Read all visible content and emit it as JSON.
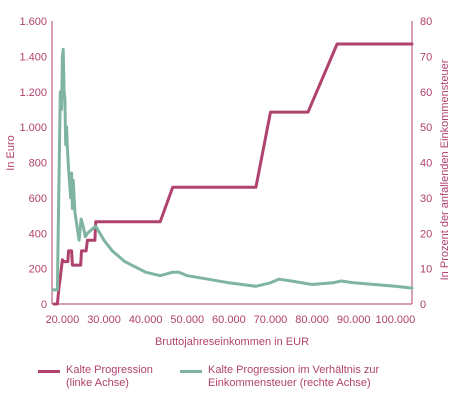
{
  "chart_data": {
    "type": "line",
    "title": "",
    "xlabel": "Bruttojahreseinkommen in EUR",
    "ylabel_left": "In Euro",
    "ylabel_right": "In Prozent der anfallenden Einkommensteuer",
    "x_ticks": [
      20000,
      30000,
      40000,
      50000,
      60000,
      70000,
      80000,
      90000,
      100000
    ],
    "x_tick_labels": [
      "20.000",
      "30.000",
      "40.000",
      "50.000",
      "60.000",
      "70.000",
      "80.000",
      "90.000",
      "100.000"
    ],
    "xlim": [
      17500,
      104000
    ],
    "ylim_left": [
      0,
      1600
    ],
    "y_left_ticks": [
      0,
      200,
      400,
      600,
      800,
      1000,
      1200,
      1400,
      1600
    ],
    "y_left_tick_labels": [
      "0",
      "200",
      "400",
      "600",
      "800",
      "1.000",
      "1.200",
      "1.400",
      "1.600"
    ],
    "ylim_right": [
      0,
      80
    ],
    "y_right_ticks": [
      0,
      10,
      20,
      30,
      40,
      50,
      60,
      70,
      80
    ],
    "y_right_tick_labels": [
      "0",
      "10",
      "20",
      "30",
      "40",
      "50",
      "60",
      "70",
      "80"
    ],
    "grid": false,
    "legend_position": "bottom",
    "series": [
      {
        "name": "Kalte Progression (linke Achse)",
        "legend_lines": [
          "Kalte Progression",
          "(linke Achse)"
        ],
        "axis": "left",
        "color": "#b0426e",
        "x": [
          18000,
          18800,
          19000,
          19200,
          19500,
          20000,
          20300,
          21300,
          21500,
          22200,
          22400,
          22600,
          24400,
          24600,
          25700,
          26000,
          27800,
          28000,
          43500,
          46500,
          47000,
          66500,
          70000,
          71000,
          79000,
          86000,
          87000,
          104000
        ],
        "y": [
          0,
          0,
          50,
          100,
          150,
          250,
          240,
          240,
          300,
          300,
          220,
          220,
          220,
          300,
          300,
          360,
          360,
          465,
          465,
          660,
          660,
          660,
          1085,
          1085,
          1085,
          1470,
          1470,
          1470
        ]
      },
      {
        "name": "Kalte Progression im Verhältnis zur Einkommensteuer (rechte Achse)",
        "legend_lines": [
          "Kalte Progression im Verhältnis zur",
          "Einkommensteuer (rechte Achse)"
        ],
        "axis": "right",
        "color": "#7fb5a0",
        "x": [
          17800,
          18800,
          19000,
          19300,
          19500,
          19800,
          20000,
          20200,
          20400,
          20600,
          20800,
          21000,
          21200,
          21500,
          21800,
          22000,
          22200,
          22400,
          22600,
          23000,
          23500,
          24000,
          24500,
          25000,
          25500,
          26000,
          27000,
          28000,
          29000,
          30000,
          32000,
          35000,
          40000,
          43500,
          46500,
          48000,
          50000,
          55000,
          60000,
          66500,
          70000,
          72000,
          75000,
          80000,
          85000,
          87000,
          90000,
          95000,
          100000,
          104000
        ],
        "y": [
          4,
          4,
          20,
          45,
          60,
          55,
          70,
          72,
          60,
          58,
          45,
          50,
          44,
          38,
          33,
          30,
          37,
          27,
          35,
          26,
          22,
          18,
          24,
          22,
          19,
          20,
          21,
          22,
          20,
          18,
          15,
          12,
          9,
          8,
          9,
          9,
          8,
          7,
          6,
          5,
          6,
          7,
          6.5,
          5.5,
          6,
          6.5,
          6,
          5.5,
          5,
          4.5
        ]
      }
    ]
  }
}
